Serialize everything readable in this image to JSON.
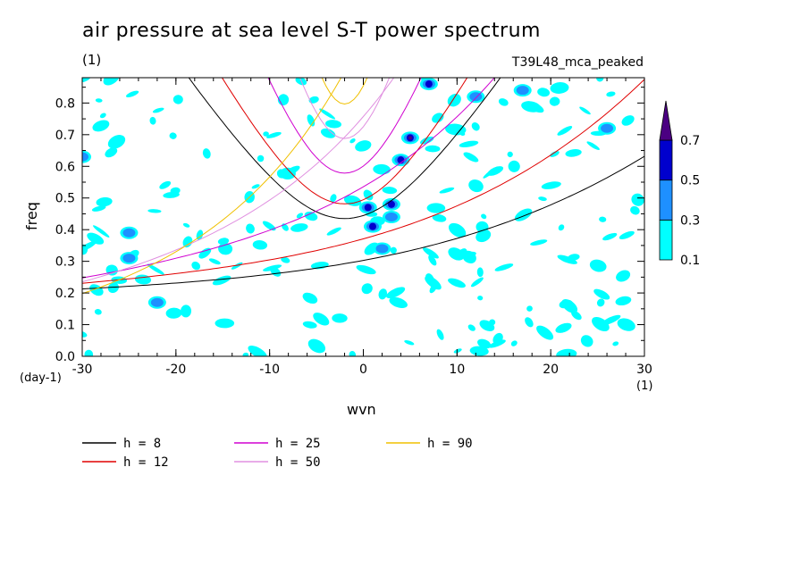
{
  "chart_data": {
    "type": "contour",
    "title": "air pressure at sea level S-T power spectrum",
    "units_label": "(1)",
    "subtitle": "T39L48_mca_peaked",
    "xlabel": "wvn",
    "ylabel": "freq",
    "x_unit": "(1)",
    "y_unit": "(day-1)",
    "xlim": [
      -30,
      30
    ],
    "ylim": [
      0,
      0.88
    ],
    "x_ticks": [
      "-30",
      "-20",
      "-10",
      "0",
      "10",
      "20",
      "30"
    ],
    "y_ticks": [
      "0.0",
      "0.1",
      "0.2",
      "0.3",
      "0.4",
      "0.5",
      "0.6",
      "0.7",
      "0.8"
    ],
    "colorbar": {
      "levels": [
        "0.1",
        "0.3",
        "0.5",
        "0.7"
      ],
      "colors": [
        "#00ffff",
        "#1e90ff",
        "#0000cd",
        "#4b0082"
      ]
    },
    "dispersion_curves": [
      {
        "label": "h =  8",
        "h": 8,
        "color": "#000000"
      },
      {
        "label": "h = 12",
        "h": 12,
        "color": "#e00000"
      },
      {
        "label": "h = 25",
        "h": 25,
        "color": "#d000d0"
      },
      {
        "label": "h = 50",
        "h": 50,
        "color": "#e090e0"
      },
      {
        "label": "h = 90",
        "h": 90,
        "color": "#f0c000"
      }
    ],
    "peaks": [
      {
        "x": 5,
        "y": 0.69,
        "level": 0.7
      },
      {
        "x": 0.5,
        "y": 0.47,
        "level": 0.5
      },
      {
        "x": 3,
        "y": 0.48,
        "level": 0.5
      },
      {
        "x": 1,
        "y": 0.41,
        "level": 0.5
      },
      {
        "x": 7,
        "y": 0.86,
        "level": 0.5
      },
      {
        "x": 4,
        "y": 0.62,
        "level": 0.5
      },
      {
        "x": 2,
        "y": 0.34,
        "level": 0.3
      },
      {
        "x": 12,
        "y": 0.82,
        "level": 0.3
      },
      {
        "x": 17,
        "y": 0.84,
        "level": 0.3
      },
      {
        "x": -25,
        "y": 0.31,
        "level": 0.3
      },
      {
        "x": -25,
        "y": 0.39,
        "level": 0.3
      },
      {
        "x": -22,
        "y": 0.17,
        "level": 0.3
      },
      {
        "x": -30,
        "y": 0.63,
        "level": 0.3
      },
      {
        "x": 3,
        "y": 0.44,
        "level": 0.3
      },
      {
        "x": 26,
        "y": 0.72,
        "level": 0.3
      }
    ]
  }
}
